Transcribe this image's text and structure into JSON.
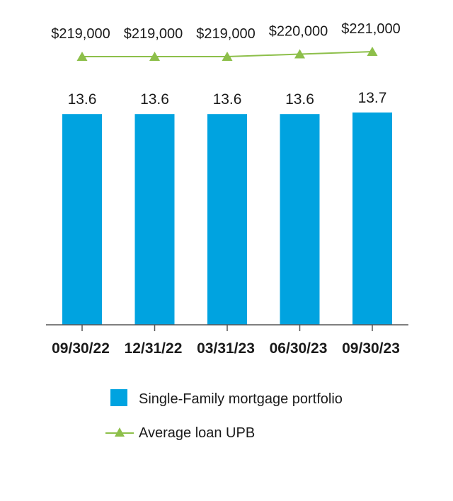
{
  "chart_data": {
    "type": "bar",
    "categories": [
      "09/30/22",
      "12/31/22",
      "03/31/23",
      "06/30/23",
      "09/30/23"
    ],
    "series": [
      {
        "name": "Single-Family mortgage portfolio",
        "type": "bar",
        "values": [
          13.6,
          13.6,
          13.6,
          13.6,
          13.7
        ],
        "labels": [
          "13.6",
          "13.6",
          "13.6",
          "13.6",
          "13.7"
        ],
        "color": "#00a3e0"
      },
      {
        "name": "Average loan UPB",
        "type": "line",
        "marker": "triangle",
        "values": [
          219000,
          219000,
          219000,
          220000,
          221000
        ],
        "labels": [
          "$219,000",
          "$219,000",
          "$219,000",
          "$220,000",
          "$221,000"
        ],
        "color": "#8dbf4a"
      }
    ],
    "ylim": [
      0,
      13.7
    ],
    "grid": false,
    "legend_position": "bottom"
  }
}
